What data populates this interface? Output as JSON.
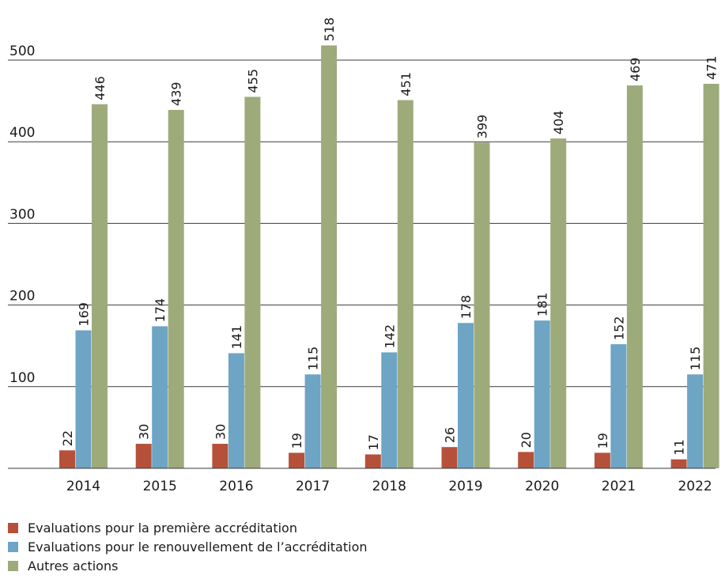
{
  "chart_data": {
    "type": "bar",
    "categories": [
      "2014",
      "2015",
      "2016",
      "2017",
      "2018",
      "2019",
      "2020",
      "2021",
      "2022"
    ],
    "series": [
      {
        "name": "Evaluations pour la première accréditation",
        "color": "#b5513a",
        "values": [
          22,
          30,
          30,
          19,
          17,
          26,
          20,
          19,
          11
        ]
      },
      {
        "name": "Evaluations pour le renouvellement de l’accréditation",
        "color": "#6ea4c4",
        "values": [
          169,
          174,
          141,
          115,
          142,
          178,
          181,
          152,
          115
        ]
      },
      {
        "name": "Autres actions",
        "color": "#9dab7b",
        "values": [
          446,
          439,
          455,
          518,
          451,
          399,
          404,
          469,
          471
        ]
      }
    ],
    "yticks": [
      100,
      200,
      300,
      400,
      500
    ],
    "ylim": [
      0,
      520
    ],
    "grid": true,
    "legend_position": "bottom-left",
    "title": "",
    "xlabel": "",
    "ylabel": ""
  }
}
